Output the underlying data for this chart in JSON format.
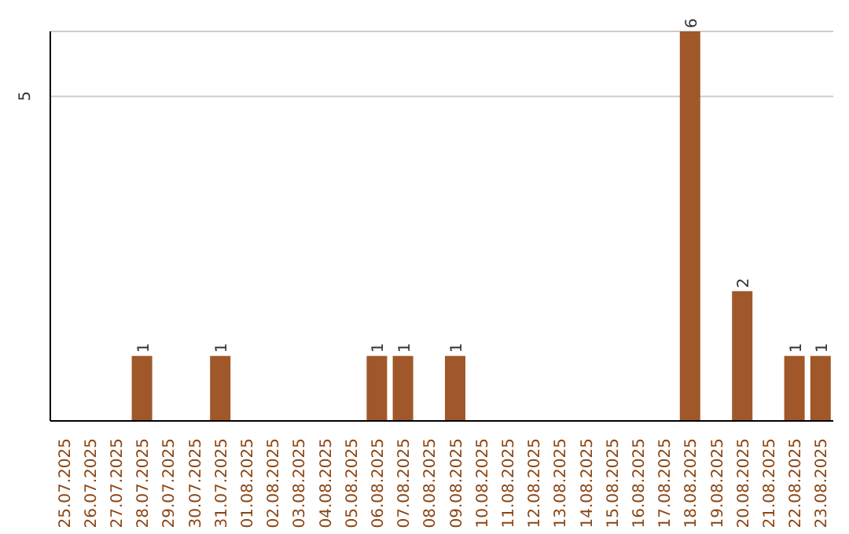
{
  "chart_data": {
    "type": "bar",
    "categories": [
      "25.07.2025",
      "26.07.2025",
      "27.07.2025",
      "28.07.2025",
      "29.07.2025",
      "30.07.2025",
      "31.07.2025",
      "01.08.2025",
      "02.08.2025",
      "03.08.2025",
      "04.08.2025",
      "05.08.2025",
      "06.08.2025",
      "07.08.2025",
      "08.08.2025",
      "09.08.2025",
      "10.08.2025",
      "11.08.2025",
      "12.08.2025",
      "13.08.2025",
      "14.08.2025",
      "15.08.2025",
      "16.08.2025",
      "17.08.2025",
      "18.08.2025",
      "19.08.2025",
      "20.08.2025",
      "21.08.2025",
      "22.08.2025",
      "23.08.2025"
    ],
    "values": [
      0,
      0,
      0,
      1,
      0,
      0,
      1,
      0,
      0,
      0,
      0,
      0,
      1,
      1,
      0,
      1,
      0,
      0,
      0,
      0,
      0,
      0,
      0,
      0,
      6,
      0,
      2,
      0,
      1,
      1
    ],
    "value_labels": [
      null,
      null,
      null,
      "1",
      null,
      null,
      "1",
      null,
      null,
      null,
      null,
      null,
      "1",
      "1",
      null,
      "1",
      null,
      null,
      null,
      null,
      null,
      null,
      null,
      null,
      "6",
      null,
      "2",
      null,
      "1",
      "1"
    ],
    "color": "#a0582a",
    "ylim": [
      0,
      6
    ],
    "yticks": [
      5
    ],
    "grid": "y"
  }
}
